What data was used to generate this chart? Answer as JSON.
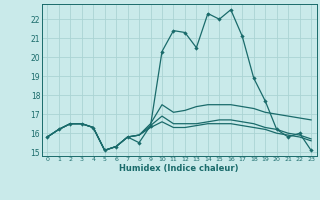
{
  "x_labels": [
    0,
    1,
    2,
    3,
    4,
    5,
    6,
    7,
    8,
    9,
    10,
    11,
    12,
    13,
    14,
    15,
    16,
    17,
    18,
    19,
    20,
    21,
    22,
    23
  ],
  "xlabel": "Humidex (Indice chaleur)",
  "ylim": [
    14.8,
    22.8
  ],
  "yticks": [
    15,
    16,
    17,
    18,
    19,
    20,
    21,
    22
  ],
  "background_color": "#c9eaea",
  "grid_color": "#aad4d4",
  "line_color": "#1a6b6b",
  "line1_y": [
    15.8,
    16.2,
    16.5,
    16.5,
    16.3,
    15.1,
    15.3,
    15.8,
    15.5,
    16.4,
    20.3,
    21.4,
    21.3,
    20.5,
    22.3,
    22.0,
    22.5,
    21.1,
    18.9,
    17.7,
    16.2,
    15.8,
    16.0,
    15.1
  ],
  "line2_y": [
    15.8,
    16.2,
    16.5,
    16.5,
    16.3,
    15.1,
    15.3,
    15.8,
    15.9,
    16.5,
    17.5,
    17.1,
    17.2,
    17.4,
    17.5,
    17.5,
    17.5,
    17.4,
    17.3,
    17.1,
    17.0,
    16.9,
    16.8,
    16.7
  ],
  "line3_y": [
    15.8,
    16.2,
    16.5,
    16.5,
    16.3,
    15.1,
    15.3,
    15.8,
    15.9,
    16.4,
    16.9,
    16.5,
    16.5,
    16.5,
    16.6,
    16.7,
    16.7,
    16.6,
    16.5,
    16.3,
    16.2,
    16.0,
    15.9,
    15.7
  ],
  "line4_y": [
    15.8,
    16.2,
    16.5,
    16.5,
    16.3,
    15.1,
    15.3,
    15.8,
    15.9,
    16.3,
    16.6,
    16.3,
    16.3,
    16.4,
    16.5,
    16.5,
    16.5,
    16.4,
    16.3,
    16.2,
    16.0,
    15.9,
    15.8,
    15.6
  ]
}
